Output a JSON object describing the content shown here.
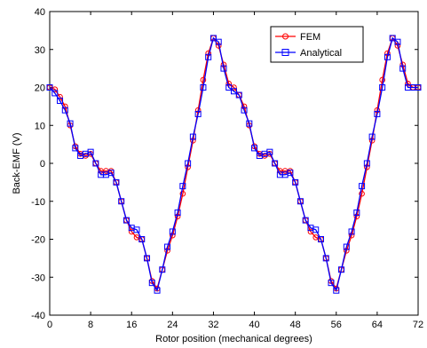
{
  "chart_data": {
    "type": "line",
    "xlabel": "Rotor position (mechanical degrees)",
    "ylabel": "Back-EMF (V)",
    "xlim": [
      0,
      72
    ],
    "ylim": [
      -40,
      40
    ],
    "xticks": [
      0,
      8,
      16,
      24,
      32,
      40,
      48,
      56,
      64,
      72
    ],
    "yticks": [
      -40,
      -30,
      -20,
      -10,
      0,
      10,
      20,
      30,
      40
    ],
    "grid": false,
    "legend_position": "top-right",
    "series": [
      {
        "name": "FEM",
        "color": "#ff0000",
        "marker": "circle",
        "x": [
          0,
          1,
          2,
          3,
          4,
          5,
          6,
          7,
          8,
          9,
          10,
          11,
          12,
          13,
          14,
          15,
          16,
          17,
          18,
          19,
          20,
          21,
          22,
          23,
          24,
          25,
          26,
          27,
          28,
          29,
          30,
          31,
          32,
          33,
          34,
          35,
          36,
          37,
          38,
          39,
          40,
          41,
          42,
          43,
          44,
          45,
          46,
          47,
          48,
          49,
          50,
          51,
          52,
          53,
          54,
          55,
          56,
          57,
          58,
          59,
          60,
          61,
          62,
          63,
          64,
          65,
          66,
          67,
          68,
          69,
          70,
          71,
          72
        ],
        "values": [
          20,
          19.5,
          17.5,
          15,
          10,
          4.5,
          2.5,
          2,
          2.5,
          0,
          -2,
          -2,
          -2,
          -5,
          -10,
          -15,
          -18,
          -19.5,
          -20,
          -25,
          -31,
          -33,
          -28,
          -23,
          -19,
          -14,
          -8,
          -1,
          6,
          14,
          22,
          29,
          33,
          31,
          26,
          21,
          20,
          18,
          15,
          10,
          4.5,
          2.5,
          2,
          2.5,
          0,
          -2,
          -2,
          -2,
          -5,
          -10,
          -15,
          -18,
          -19.5,
          -20,
          -25,
          -31,
          -33,
          -28,
          -23,
          -19,
          -14,
          -8,
          -1,
          6,
          14,
          22,
          29,
          33,
          31,
          26,
          21,
          20,
          20
        ]
      },
      {
        "name": "Analytical",
        "color": "#0000ff",
        "marker": "square",
        "x": [
          0,
          1,
          2,
          3,
          4,
          5,
          6,
          7,
          8,
          9,
          10,
          11,
          12,
          13,
          14,
          15,
          16,
          17,
          18,
          19,
          20,
          21,
          22,
          23,
          24,
          25,
          26,
          27,
          28,
          29,
          30,
          31,
          32,
          33,
          34,
          35,
          36,
          37,
          38,
          39,
          40,
          41,
          42,
          43,
          44,
          45,
          46,
          47,
          48,
          49,
          50,
          51,
          52,
          53,
          54,
          55,
          56,
          57,
          58,
          59,
          60,
          61,
          62,
          63,
          64,
          65,
          66,
          67,
          68,
          69,
          70,
          71,
          72
        ],
        "values": [
          20,
          18.5,
          16.5,
          14,
          10.5,
          4,
          2,
          2.5,
          3,
          0,
          -3,
          -3,
          -2.5,
          -5,
          -10,
          -15,
          -17,
          -17.5,
          -20,
          -25,
          -31.5,
          -33.5,
          -28,
          -22,
          -18,
          -13,
          -6,
          0,
          7,
          13,
          20,
          28,
          33,
          32,
          25,
          20,
          19,
          18,
          14,
          10.5,
          4,
          2,
          2.5,
          3,
          0,
          -3,
          -3,
          -2.5,
          -5,
          -10,
          -15,
          -17,
          -17.5,
          -20,
          -25,
          -31.5,
          -33.5,
          -28,
          -22,
          -18,
          -13,
          -6,
          0,
          7,
          13,
          20,
          28,
          33,
          32,
          25,
          20,
          20,
          20
        ]
      }
    ]
  }
}
